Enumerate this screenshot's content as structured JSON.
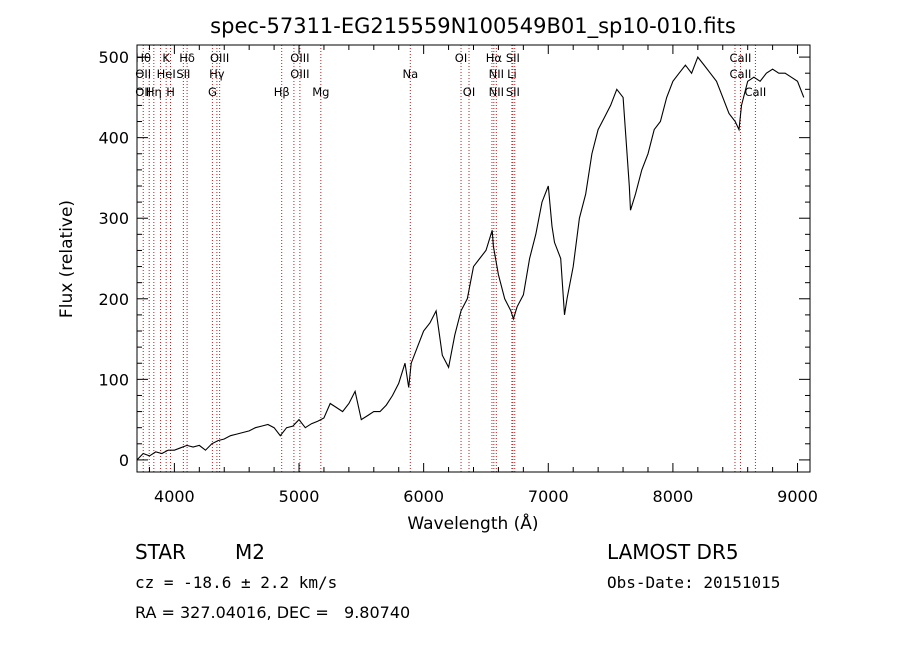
{
  "chart_data": {
    "type": "line",
    "title": "spec-57311-EG215559N100549B01_sp10-010.fits",
    "xlabel": "Wavelength (Å)",
    "ylabel": "Flux (relative)",
    "xlim": [
      3700,
      9100
    ],
    "ylim": [
      -15,
      515
    ],
    "x_ticks": [
      4000,
      5000,
      6000,
      7000,
      8000,
      9000
    ],
    "y_ticks": [
      0,
      100,
      200,
      300,
      400,
      500
    ],
    "grid": false,
    "series": [
      {
        "color": "#000000",
        "x": [
          3700,
          3750,
          3800,
          3850,
          3900,
          3950,
          4000,
          4050,
          4100,
          4150,
          4200,
          4250,
          4300,
          4350,
          4400,
          4450,
          4500,
          4550,
          4600,
          4650,
          4700,
          4750,
          4800,
          4850,
          4900,
          4950,
          5000,
          5050,
          5100,
          5150,
          5200,
          5250,
          5300,
          5350,
          5400,
          5450,
          5500,
          5550,
          5600,
          5650,
          5700,
          5750,
          5800,
          5850,
          5880,
          5900,
          5950,
          6000,
          6050,
          6100,
          6150,
          6200,
          6250,
          6300,
          6350,
          6400,
          6450,
          6500,
          6550,
          6560,
          6600,
          6650,
          6700,
          6720,
          6750,
          6800,
          6850,
          6900,
          6950,
          7000,
          7030,
          7050,
          7100,
          7130,
          7150,
          7200,
          7250,
          7300,
          7350,
          7400,
          7450,
          7500,
          7550,
          7600,
          7650,
          7660,
          7700,
          7750,
          7800,
          7850,
          7900,
          7950,
          8000,
          8050,
          8100,
          8150,
          8200,
          8250,
          8300,
          8350,
          8400,
          8450,
          8500,
          8530,
          8550,
          8600,
          8650,
          8700,
          8750,
          8800,
          8850,
          8900,
          8950,
          9000,
          9050
        ],
        "y": [
          0,
          8,
          5,
          10,
          8,
          12,
          12,
          15,
          18,
          16,
          18,
          12,
          20,
          24,
          26,
          30,
          32,
          34,
          36,
          40,
          42,
          44,
          40,
          30,
          40,
          42,
          50,
          40,
          45,
          48,
          52,
          70,
          65,
          60,
          70,
          85,
          50,
          55,
          60,
          60,
          68,
          80,
          95,
          120,
          90,
          120,
          140,
          160,
          170,
          185,
          130,
          115,
          155,
          185,
          200,
          240,
          250,
          260,
          285,
          265,
          230,
          200,
          185,
          175,
          190,
          205,
          250,
          280,
          320,
          340,
          290,
          270,
          250,
          180,
          200,
          240,
          300,
          330,
          380,
          410,
          425,
          440,
          460,
          450,
          340,
          310,
          330,
          360,
          380,
          410,
          420,
          450,
          470,
          480,
          490,
          480,
          500,
          490,
          480,
          470,
          450,
          430,
          420,
          410,
          440,
          470,
          475,
          470,
          480,
          485,
          480,
          480,
          475,
          470,
          450
        ]
      }
    ],
    "lines": [
      {
        "x": 3750,
        "top": "Hθ",
        "mid": "OII",
        "bot": "OII"
      },
      {
        "x": 3798
      },
      {
        "x": 3835,
        "bot": "Hη"
      },
      {
        "x": 3889
      },
      {
        "x": 3934,
        "top": "K",
        "mid": "HeI"
      },
      {
        "x": 3969,
        "bot": "H"
      },
      {
        "x": 4072,
        "mid": "SII"
      },
      {
        "x": 4102,
        "top": "Hδ"
      },
      {
        "x": 4305,
        "bot": "G"
      },
      {
        "x": 4341,
        "mid": "Hγ"
      },
      {
        "x": 4363,
        "top": "OIII"
      },
      {
        "x": 4861,
        "bot": "Hβ"
      },
      {
        "x": 4959
      },
      {
        "x": 5007,
        "top": "OIII",
        "mid": "OIII"
      },
      {
        "x": 5175,
        "bot": "Mg"
      },
      {
        "x": 5893,
        "mid": "Na"
      },
      {
        "x": 6300,
        "top": "OI"
      },
      {
        "x": 6364,
        "bot": "OI"
      },
      {
        "x": 6548
      },
      {
        "x": 6563,
        "top": "Hα"
      },
      {
        "x": 6583,
        "mid": "NII",
        "bot": "NII"
      },
      {
        "x": 6708,
        "mid": "Li"
      },
      {
        "x": 6716,
        "top": "SII",
        "bot": "SII"
      },
      {
        "x": 6731
      },
      {
        "x": 8498
      },
      {
        "x": 8542,
        "top": "CaII",
        "mid": "CaII"
      },
      {
        "x": 8662,
        "bot": "CaII"
      }
    ]
  },
  "footer": {
    "object_class": "STAR",
    "subclass": "M2",
    "cz": "cz = -18.6 ± 2.2 km/s",
    "radec": "RA = 327.04016, DEC =   9.80740",
    "survey": "LAMOST DR5",
    "obs_date": "Obs-Date: 20151015"
  }
}
